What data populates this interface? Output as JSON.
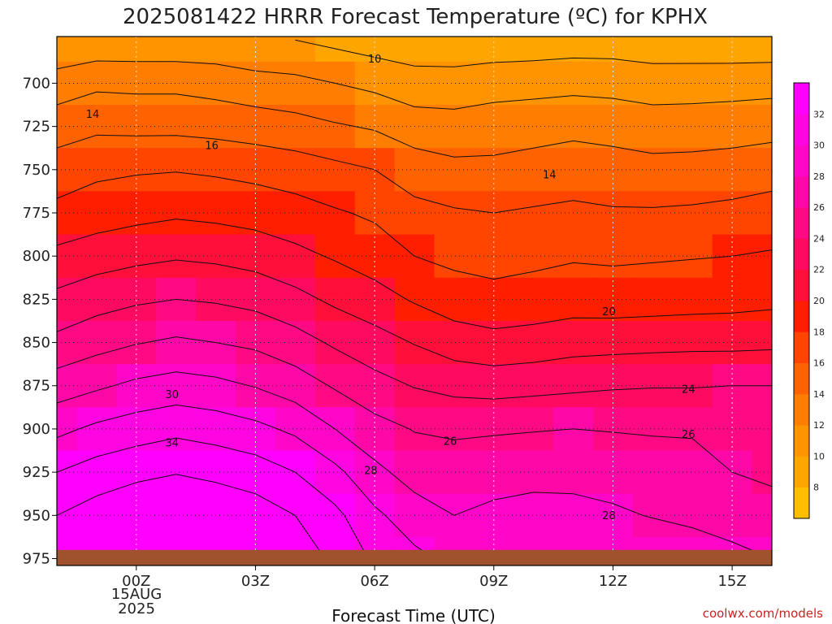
{
  "chart_data": {
    "type": "heatmap",
    "title": "2025081422 HRRR Forecast Temperature (ºC) for KPHX",
    "xlabel": "Forecast Time (UTC)",
    "ylabel": "",
    "x_ticks": [
      "00Z",
      "03Z",
      "06Z",
      "09Z",
      "12Z",
      "15Z"
    ],
    "x_tick_hours": [
      2,
      5,
      8,
      11,
      14,
      17
    ],
    "x_date_label": [
      "15AUG",
      "2025"
    ],
    "xlim_hours": [
      0,
      18
    ],
    "y_ticks": [
      700,
      725,
      750,
      775,
      800,
      825,
      850,
      875,
      900,
      925,
      950,
      975
    ],
    "ylim_hPa": [
      673,
      979
    ],
    "grid": true,
    "colorbar": {
      "levels": [
        6,
        8,
        10,
        12,
        14,
        16,
        18,
        20,
        22,
        24,
        26,
        28,
        30,
        32,
        34
      ],
      "tick_labels": [
        "8",
        "10",
        "12",
        "14",
        "16",
        "18",
        "20",
        "22",
        "24",
        "26",
        "28",
        "30",
        "32"
      ],
      "colors": [
        "#ffbe00",
        "#ffa500",
        "#ff9400",
        "#ff7d00",
        "#ff6200",
        "#ff4500",
        "#ff1f00",
        "#ff0f3a",
        "#ff0a61",
        "#ff0a84",
        "#ff08a8",
        "#ff06c8",
        "#ff05e2",
        "#ff00ff"
      ]
    },
    "forecast_hours": [
      0,
      1,
      2,
      3,
      4,
      5,
      6,
      7,
      8,
      9,
      10,
      11,
      12,
      13,
      14,
      15,
      16,
      17,
      18
    ],
    "pressure_levels_hPa": [
      675,
      700,
      725,
      750,
      775,
      800,
      825,
      850,
      875,
      900,
      925,
      950,
      975
    ],
    "temperature_C": [
      [
        10.0,
        10.5,
        10.5,
        10.5,
        10.5,
        10.0,
        10.0,
        9.5,
        9.0,
        8.8,
        8.7,
        8.7,
        8.8,
        9.0,
        9.0,
        8.8,
        8.7,
        8.6,
        8.6
      ],
      [
        13.0,
        13.6,
        13.5,
        13.5,
        13.2,
        12.8,
        12.5,
        12.0,
        11.5,
        10.8,
        10.8,
        11.2,
        11.3,
        11.4,
        11.3,
        11.0,
        11.1,
        11.2,
        11.3
      ],
      [
        15.0,
        15.6,
        15.5,
        15.5,
        15.3,
        15.0,
        14.7,
        14.2,
        13.8,
        13.0,
        12.8,
        13.0,
        13.2,
        13.5,
        13.3,
        13.0,
        13.0,
        13.1,
        13.3
      ],
      [
        17.0,
        17.6,
        17.8,
        17.9,
        17.7,
        17.4,
        17.0,
        16.5,
        16.0,
        15.0,
        14.5,
        14.5,
        14.8,
        15.0,
        14.8,
        14.6,
        14.7,
        14.9,
        15.2
      ],
      [
        18.5,
        19.0,
        19.4,
        19.7,
        19.5,
        19.2,
        18.8,
        18.2,
        17.7,
        16.6,
        16.2,
        16.0,
        16.2,
        16.4,
        16.2,
        16.2,
        16.3,
        16.5,
        16.8
      ],
      [
        20.5,
        21.1,
        21.5,
        21.8,
        21.6,
        21.2,
        20.5,
        19.8,
        19.0,
        18.0,
        17.5,
        17.2,
        17.5,
        17.8,
        17.7,
        17.8,
        17.9,
        18.0,
        18.2
      ],
      [
        22.5,
        23.2,
        23.7,
        24.0,
        23.8,
        23.4,
        22.6,
        21.6,
        20.8,
        19.8,
        19.0,
        18.7,
        18.9,
        19.1,
        19.0,
        19.1,
        19.2,
        19.3,
        19.5
      ],
      [
        24.5,
        25.3,
        25.9,
        26.3,
        26.0,
        25.6,
        24.8,
        23.7,
        22.8,
        21.9,
        21.0,
        20.6,
        20.8,
        21.2,
        21.3,
        21.4,
        21.5,
        21.5,
        21.6
      ],
      [
        27.0,
        27.7,
        28.4,
        28.8,
        28.5,
        27.9,
        27.0,
        25.8,
        24.7,
        23.9,
        23.4,
        23.2,
        23.4,
        23.6,
        23.8,
        23.9,
        23.9,
        24.0,
        24.0
      ],
      [
        29.5,
        30.4,
        31.0,
        31.5,
        31.1,
        30.5,
        29.6,
        28.0,
        26.7,
        25.9,
        25.7,
        25.8,
        25.9,
        26.0,
        25.9,
        25.8,
        25.8,
        25.5,
        25.0
      ],
      [
        32.0,
        32.9,
        33.5,
        33.9,
        33.5,
        33.0,
        32.0,
        30.5,
        28.5,
        27.2,
        26.9,
        27.1,
        27.3,
        27.3,
        27.2,
        27.0,
        26.7,
        26.0,
        25.5
      ],
      [
        34.0,
        34.9,
        35.6,
        36.0,
        35.6,
        35.0,
        34.0,
        32.5,
        30.4,
        28.9,
        28.0,
        28.5,
        28.8,
        28.7,
        28.3,
        27.9,
        27.6,
        27.2,
        27.0
      ],
      [
        35.5,
        36.5,
        37.3,
        37.7,
        37.3,
        36.7,
        35.5,
        33.5,
        31.7,
        30.5,
        29.5,
        29.2,
        29.2,
        29.3,
        29.5,
        29.5,
        29.0,
        28.5,
        28.0
      ]
    ],
    "contour_levels": [
      10,
      12,
      14,
      16,
      18,
      20,
      22,
      24,
      26,
      28,
      30,
      32,
      34
    ],
    "contour_labels": [
      {
        "text": "10",
        "hour": 8.0,
        "hPa": 686
      },
      {
        "text": "14",
        "hour": 0.9,
        "hPa": 718
      },
      {
        "text": "16",
        "hour": 3.9,
        "hPa": 736
      },
      {
        "text": "14",
        "hour": 12.4,
        "hPa": 753
      },
      {
        "text": "20",
        "hour": 13.9,
        "hPa": 832
      },
      {
        "text": "30",
        "hour": 2.9,
        "hPa": 880
      },
      {
        "text": "24",
        "hour": 15.9,
        "hPa": 877
      },
      {
        "text": "26",
        "hour": 9.9,
        "hPa": 907
      },
      {
        "text": "26",
        "hour": 15.9,
        "hPa": 903
      },
      {
        "text": "34",
        "hour": 2.9,
        "hPa": 908
      },
      {
        "text": "28",
        "hour": 7.9,
        "hPa": 924
      },
      {
        "text": "28",
        "hour": 13.9,
        "hPa": 950
      }
    ],
    "ground_color": "#a0522d"
  },
  "credit": "coolwx.com/models"
}
